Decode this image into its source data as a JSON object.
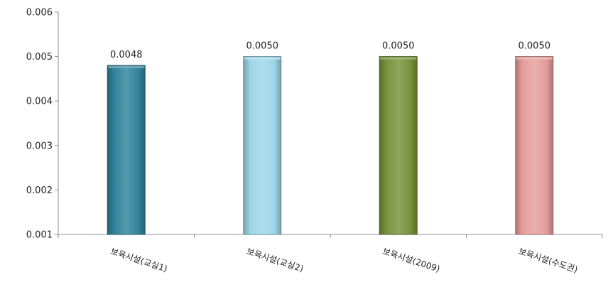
{
  "chart_data": {
    "type": "bar",
    "categories": [
      "보육시설(교실1)",
      "보육시설(교실2)",
      "보육시설(2009)",
      "보육시설(수도권)"
    ],
    "values": [
      0.0048,
      0.005,
      0.005,
      0.005
    ],
    "data_labels": [
      "0.0048",
      "0.0050",
      "0.0050",
      "0.0050"
    ],
    "colors": [
      "#31849b",
      "#9ed6e8",
      "#77933c",
      "#e59d9b"
    ],
    "ylim": [
      0.001,
      0.006
    ],
    "yticks": [
      "0.001",
      "0.002",
      "0.003",
      "0.004",
      "0.005",
      "0.006"
    ],
    "grid": false,
    "legend": "none"
  }
}
